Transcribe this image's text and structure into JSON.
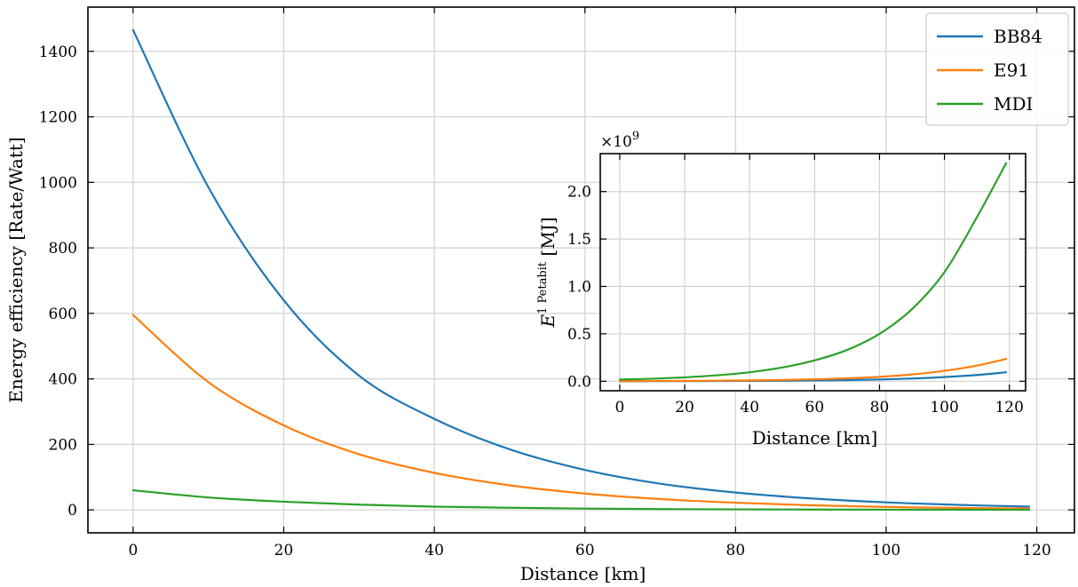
{
  "chart_data": [
    {
      "type": "line",
      "xlabel": "Distance [km]",
      "ylabel": "Energy efficiency [Rate/Watt]",
      "xlim": [
        -6,
        125
      ],
      "ylim": [
        -70,
        1535
      ],
      "xticks": [
        0,
        20,
        40,
        60,
        80,
        100,
        120
      ],
      "yticks": [
        0,
        200,
        400,
        600,
        800,
        1000,
        1200,
        1400
      ],
      "grid": true,
      "legend": "top-right",
      "x": [
        0,
        10,
        20,
        30,
        40,
        50,
        60,
        70,
        80,
        90,
        100,
        110,
        119
      ],
      "series": [
        {
          "name": "BB84",
          "color": "#1f77b4",
          "values": [
            1465,
            985,
            640,
            410,
            278,
            185,
            122,
            80,
            53,
            35,
            23,
            15,
            10
          ]
        },
        {
          "name": "E91",
          "color": "#ff7f0e",
          "values": [
            595,
            390,
            258,
            170,
            113,
            75,
            50,
            33,
            22,
            14,
            9,
            6,
            4
          ]
        },
        {
          "name": "MDI",
          "color": "#2ca02c",
          "values": [
            60,
            38,
            25,
            16,
            10,
            6.5,
            4,
            2.6,
            1.7,
            1.1,
            0.7,
            0.45,
            0.3
          ]
        }
      ]
    },
    {
      "type": "line",
      "xlabel": "Distance [km]",
      "ylabel_main": "E",
      "ylabel_sup": "1 Petabit",
      "ylabel_unit": " [MJ]",
      "y_multiplier": "×10",
      "y_multiplier_exp": "9",
      "xlim": [
        -6,
        125
      ],
      "ylim": [
        -0.1,
        2.4
      ],
      "xticks": [
        0,
        20,
        40,
        60,
        80,
        100,
        120
      ],
      "yticks": [
        0.0,
        0.5,
        1.0,
        1.5,
        2.0
      ],
      "grid": true,
      "x": [
        0,
        10,
        20,
        30,
        40,
        50,
        60,
        70,
        80,
        90,
        100,
        110,
        119
      ],
      "series": [
        {
          "color": "#1f77b4",
          "values": [
            0.0007,
            0.001,
            0.0016,
            0.0024,
            0.0036,
            0.0054,
            0.0082,
            0.0125,
            0.019,
            0.029,
            0.044,
            0.066,
            0.095
          ]
        },
        {
          "color": "#ff7f0e",
          "values": [
            0.0017,
            0.0026,
            0.0039,
            0.006,
            0.009,
            0.0136,
            0.021,
            0.031,
            0.047,
            0.072,
            0.11,
            0.165,
            0.235
          ]
        },
        {
          "color": "#2ca02c",
          "values": [
            0.018,
            0.027,
            0.041,
            0.063,
            0.095,
            0.145,
            0.22,
            0.33,
            0.5,
            0.76,
            1.15,
            1.73,
            2.3
          ]
        }
      ]
    }
  ]
}
